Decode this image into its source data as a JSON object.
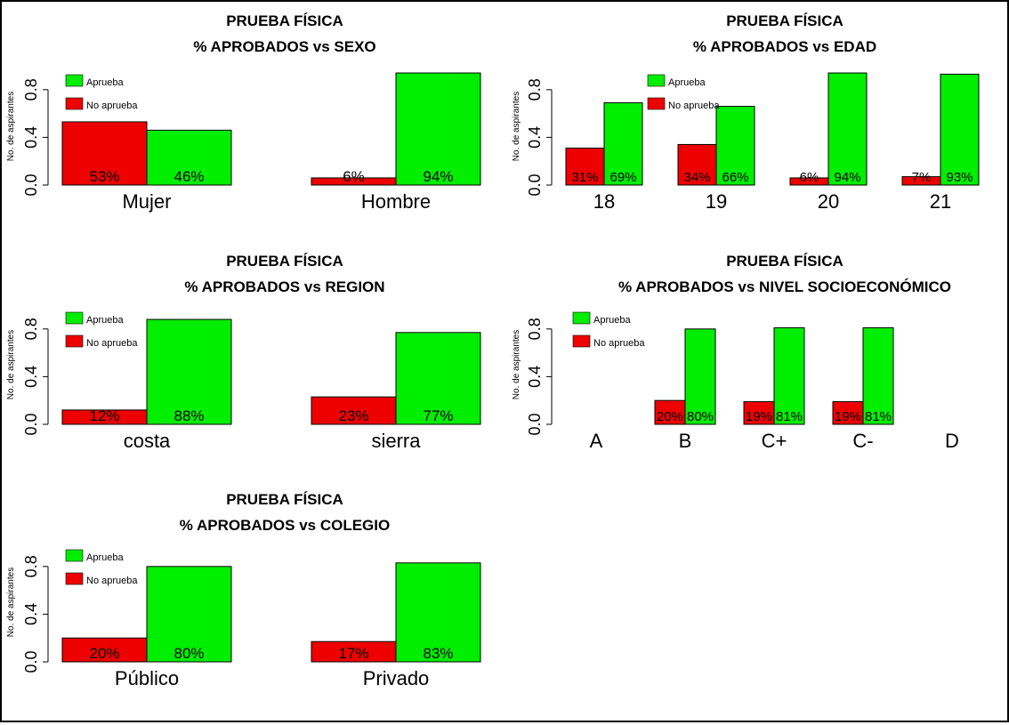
{
  "colors": {
    "aprueba": "#00ee00",
    "no_aprueba": "#ee0000",
    "axis": "#000000",
    "border": "#000000"
  },
  "chart_data": [
    {
      "type": "bar",
      "title": "PRUEBA FÍSICA",
      "subtitle": "% APROBADOS vs SEXO",
      "ylabel": "No. de aspirantes",
      "ylim": [
        0,
        1
      ],
      "yticks": [
        "0.0",
        "0.4",
        "0.8"
      ],
      "categories": [
        "Mujer",
        "Hombre"
      ],
      "legend": [
        "Aprueba",
        "No aprueba"
      ],
      "legend_position": "top-left",
      "series": [
        {
          "name": "No aprueba",
          "values": [
            0.53,
            0.06
          ],
          "labels": [
            "53%",
            "6%"
          ]
        },
        {
          "name": "Aprueba",
          "values": [
            0.46,
            0.94
          ],
          "labels": [
            "46%",
            "94%"
          ]
        }
      ]
    },
    {
      "type": "bar",
      "title": "PRUEBA FÍSICA",
      "subtitle": "% APROBADOS vs EDAD",
      "ylabel": "No. de aspirantes",
      "ylim": [
        0,
        1
      ],
      "yticks": [
        "0.0",
        "0.4",
        "0.8"
      ],
      "categories": [
        "18",
        "19",
        "20",
        "21"
      ],
      "legend": [
        "Aprueba",
        "No aprueba"
      ],
      "legend_position": "top-center",
      "series": [
        {
          "name": "No aprueba",
          "values": [
            0.31,
            0.34,
            0.06,
            0.07
          ],
          "labels": [
            "31%",
            "34%",
            "6%",
            "7%"
          ]
        },
        {
          "name": "Aprueba",
          "values": [
            0.69,
            0.66,
            0.94,
            0.93
          ],
          "labels": [
            "69%",
            "66%",
            "94%",
            "93%"
          ]
        }
      ]
    },
    {
      "type": "bar",
      "title": "PRUEBA FÍSICA",
      "subtitle": "% APROBADOS vs REGION",
      "ylabel": "No. de aspirantes",
      "ylim": [
        0,
        1
      ],
      "yticks": [
        "0.0",
        "0.4",
        "0.8"
      ],
      "categories": [
        "costa",
        "sierra"
      ],
      "legend": [
        "Aprueba",
        "No aprueba"
      ],
      "legend_position": "top-left",
      "series": [
        {
          "name": "No aprueba",
          "values": [
            0.12,
            0.23
          ],
          "labels": [
            "12%",
            "23%"
          ]
        },
        {
          "name": "Aprueba",
          "values": [
            0.88,
            0.77
          ],
          "labels": [
            "88%",
            "77%"
          ]
        }
      ]
    },
    {
      "type": "bar",
      "title": "PRUEBA FÍSICA",
      "subtitle": "% APROBADOS vs NIVEL SOCIOECONÓMICO",
      "ylabel": "No. de aspirantes",
      "ylim": [
        0,
        1
      ],
      "yticks": [
        "0.0",
        "0.4",
        "0.8"
      ],
      "categories": [
        "A",
        "B",
        "C+",
        "C-",
        "D"
      ],
      "legend": [
        "Aprueba",
        "No aprueba"
      ],
      "legend_position": "top-left",
      "series": [
        {
          "name": "No aprueba",
          "values": [
            null,
            0.2,
            0.19,
            0.19,
            null
          ],
          "labels": [
            "",
            "20%",
            "19%",
            "19%",
            ""
          ]
        },
        {
          "name": "Aprueba",
          "values": [
            null,
            0.8,
            0.81,
            0.81,
            null
          ],
          "labels": [
            "",
            "80%",
            "81%",
            "81%",
            ""
          ]
        }
      ]
    },
    {
      "type": "bar",
      "title": "PRUEBA FÍSICA",
      "subtitle": "% APROBADOS vs COLEGIO",
      "ylabel": "No. de aspirantes",
      "ylim": [
        0,
        1
      ],
      "yticks": [
        "0.0",
        "0.4",
        "0.8"
      ],
      "categories": [
        "Público",
        "Privado"
      ],
      "legend": [
        "Aprueba",
        "No aprueba"
      ],
      "legend_position": "top-left",
      "series": [
        {
          "name": "No aprueba",
          "values": [
            0.2,
            0.17
          ],
          "labels": [
            "20%",
            "17%"
          ]
        },
        {
          "name": "Aprueba",
          "values": [
            0.8,
            0.83
          ],
          "labels": [
            "80%",
            "83%"
          ]
        }
      ]
    }
  ]
}
